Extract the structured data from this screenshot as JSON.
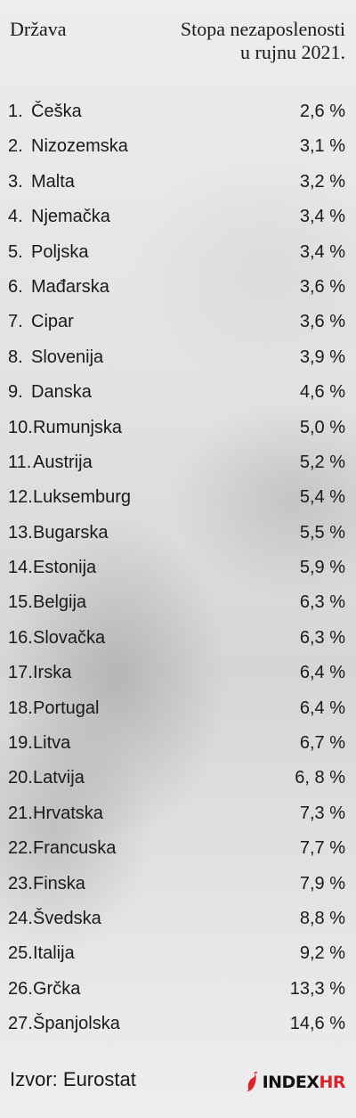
{
  "header": {
    "country_label": "Država",
    "rate_label_line1": "Stopa nezaposlenosti",
    "rate_label_line2": "u rujnu 2021."
  },
  "rows": [
    {
      "num": "1.",
      "country": "Češka",
      "rate": "2,6 %"
    },
    {
      "num": "2.",
      "country": "Nizozemska",
      "rate": "3,1 %"
    },
    {
      "num": "3.",
      "country": "Malta",
      "rate": "3,2 %"
    },
    {
      "num": "4.",
      "country": "Njemačka",
      "rate": "3,4 %"
    },
    {
      "num": "5.",
      "country": "Poljska",
      "rate": "3,4 %"
    },
    {
      "num": "6.",
      "country": "Mađarska",
      "rate": "3,6 %"
    },
    {
      "num": "7.",
      "country": "Cipar",
      "rate": "3,6 %"
    },
    {
      "num": "8.",
      "country": "Slovenija",
      "rate": "3,9 %"
    },
    {
      "num": "9.",
      "country": "Danska",
      "rate": "4,6 %"
    },
    {
      "num": "10.",
      "country": "Rumunjska",
      "rate": "5,0 %"
    },
    {
      "num": "11.",
      "country": "Austrija",
      "rate": "5,2 %"
    },
    {
      "num": "12.",
      "country": "Luksemburg",
      "rate": "5,4 %"
    },
    {
      "num": "13.",
      "country": "Bugarska",
      "rate": "5,5 %"
    },
    {
      "num": "14.",
      "country": "Estonija",
      "rate": "5,9 %"
    },
    {
      "num": "15.",
      "country": "Belgija",
      "rate": "6,3 %"
    },
    {
      "num": "16.",
      "country": "Slovačka",
      "rate": "6,3 %"
    },
    {
      "num": "17.",
      "country": "Irska",
      "rate": "6,4 %"
    },
    {
      "num": "18.",
      "country": "Portugal",
      "rate": "6,4 %"
    },
    {
      "num": "19.",
      "country": "Litva",
      "rate": "6,7 %"
    },
    {
      "num": "20.",
      "country": "Latvija",
      "rate": "6, 8 %"
    },
    {
      "num": "21.",
      "country": "Hrvatska",
      "rate": "7,3 %"
    },
    {
      "num": "22.",
      "country": "Francuska",
      "rate": "7,7 %"
    },
    {
      "num": "23.",
      "country": "Finska",
      "rate": "7,9 %"
    },
    {
      "num": "24.",
      "country": "Švedska",
      "rate": "8,8 %"
    },
    {
      "num": "25.",
      "country": "Italija",
      "rate": "9,2 %"
    },
    {
      "num": "26.",
      "country": "Grčka",
      "rate": "13,3 %"
    },
    {
      "num": "27.",
      "country": "Španjolska",
      "rate": "14,6 %"
    }
  ],
  "footer": {
    "source": "Izvor: Eurostat",
    "logo_index": "INDEX",
    "logo_hr": "HR",
    "logo_icon": "chili-pepper-icon",
    "brand_color": "#d9232d"
  }
}
